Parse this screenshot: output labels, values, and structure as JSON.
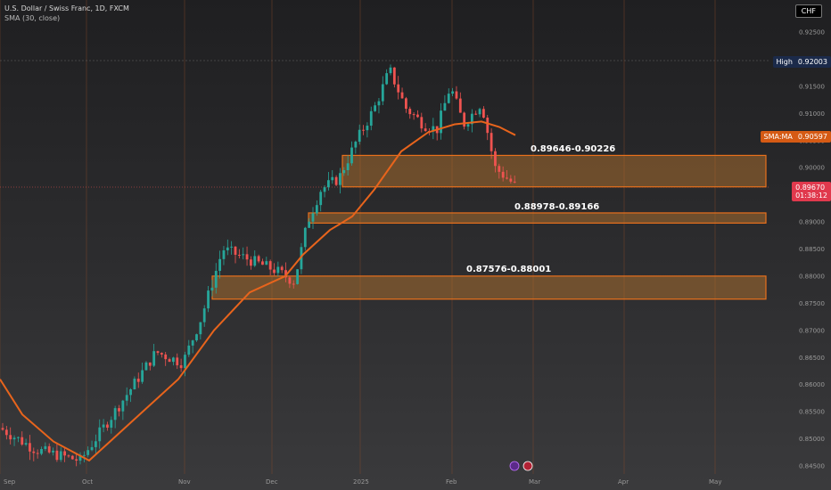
{
  "header": {
    "title": "U.S. Dollar / Swiss Franc, 1D, FXCM",
    "indicator": "SMA (30, close)",
    "currency": "CHF"
  },
  "price_tags": {
    "high_label": "High",
    "high_value": "0.92003",
    "sma_label": "SMA:MA",
    "sma_value": "0.90597",
    "last_value": "0.89670",
    "countdown": "01:38:12"
  },
  "zones": [
    {
      "label": "0.89646-0.90226",
      "low": 0.89646,
      "high": 0.90226
    },
    {
      "label": "0.88978-0.89166",
      "low": 0.88978,
      "high": 0.89166
    },
    {
      "label": "0.87576-0.88001",
      "low": 0.87576,
      "high": 0.88001
    }
  ],
  "colors": {
    "up": "#26a69a",
    "down": "#ef5350",
    "sma": "#e8641c",
    "zone_fill": "#c27a2e",
    "zone_border": "#e8701c",
    "gridline": "#8a4a2a"
  },
  "chart_data": {
    "type": "candlestick",
    "title": "U.S. Dollar / Swiss Franc, 1D, FXCM",
    "indicator": "SMA (30, close)",
    "yaxis": {
      "ticks": [
        "0.92500",
        "0.92000",
        "0.91500",
        "0.91000",
        "0.90500",
        "0.90000",
        "0.89500",
        "0.89000",
        "0.88500",
        "0.88000",
        "0.87500",
        "0.87000",
        "0.86500",
        "0.86000",
        "0.85500",
        "0.85000",
        "0.84500"
      ],
      "range": [
        0.8445,
        0.9268
      ]
    },
    "xaxis": {
      "ticks": [
        "Sep",
        "Oct",
        "Nov",
        "Dec",
        "2025",
        "Feb",
        "Mar",
        "Apr",
        "May"
      ]
    },
    "high": 0.92003,
    "last_close": 0.8967,
    "sma_last": 0.90597
  }
}
